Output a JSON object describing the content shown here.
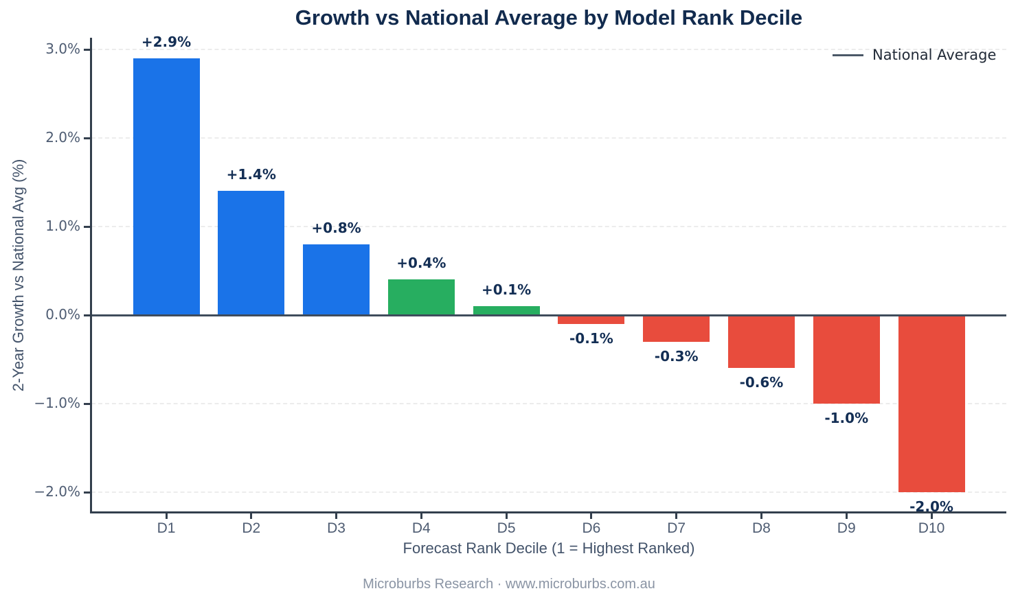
{
  "title": "Growth vs National Average by Model Rank Decile",
  "legend": {
    "label": "National Average"
  },
  "axes": {
    "x_label": "Forecast Rank Decile (1 = Highest Ranked)",
    "y_label": "2-Year Growth vs National Avg (%)",
    "y_ticks": [
      {
        "value": 3,
        "label": "3.0%"
      },
      {
        "value": 2,
        "label": "2.0%"
      },
      {
        "value": 1,
        "label": "1.0%"
      },
      {
        "value": 0,
        "label": "0.0%"
      },
      {
        "value": -1,
        "label": "−1.0%"
      },
      {
        "value": -2,
        "label": "−2.0%"
      }
    ]
  },
  "footer": "Microburbs Research · www.microburbs.com.au",
  "chart_data": {
    "type": "bar",
    "title": "Growth vs National Average by Model Rank Decile",
    "xlabel": "Forecast Rank Decile (1 = Highest Ranked)",
    "ylabel": "2-Year Growth vs National Avg (%)",
    "categories": [
      "D1",
      "D2",
      "D3",
      "D4",
      "D5",
      "D6",
      "D7",
      "D8",
      "D9",
      "D10"
    ],
    "values": [
      2.9,
      1.4,
      0.8,
      0.4,
      0.1,
      -0.1,
      -0.3,
      -0.6,
      -1.0,
      -2.0
    ],
    "bar_labels": [
      "+2.9%",
      "+1.4%",
      "+0.8%",
      "+0.4%",
      "+0.1%",
      "-0.1%",
      "-0.3%",
      "-0.6%",
      "-1.0%",
      "-2.0%"
    ],
    "bar_colors": [
      "#1a73e8",
      "#1a73e8",
      "#1a73e8",
      "#27ae60",
      "#27ae60",
      "#e84c3d",
      "#e84c3d",
      "#e84c3d",
      "#e84c3d",
      "#e84c3d"
    ],
    "ylim": [
      -2.25,
      3.13
    ],
    "grid": "horizontal dashed",
    "legend_position": "top-right",
    "reference_line": {
      "y": 0,
      "label": "National Average",
      "color": "#3f4c5c"
    },
    "colors": {
      "blue_positive": "#1a73e8",
      "green_positive": "#27ae60",
      "red_negative": "#e84c3d",
      "title_navy": "#122b4e",
      "axis_slate": "#4e5c72",
      "zero_line": "#3f4c5c"
    }
  }
}
